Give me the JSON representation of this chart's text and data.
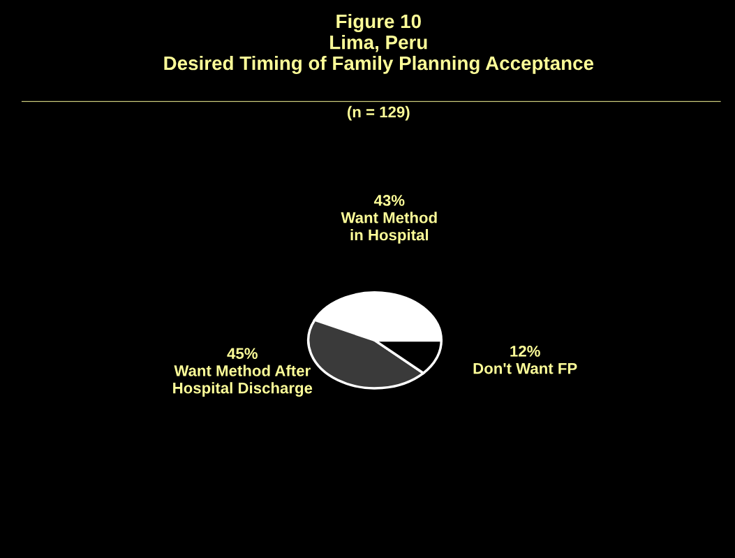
{
  "chart_data": {
    "type": "pie",
    "title": "Figure 10\nLima, Peru\nDesired Timing of Family Planning Acceptance",
    "subtitle": "(n = 129)",
    "categories": [
      "Want Method\nin Hospital",
      "Want Method After\nHospital Discharge",
      "Don't Want FP"
    ],
    "values": [
      43,
      45,
      12
    ],
    "value_labels": [
      "43%",
      "45%",
      "12%"
    ],
    "colors": [
      "#ffffff",
      "#3a3a3a",
      "#000000"
    ]
  }
}
